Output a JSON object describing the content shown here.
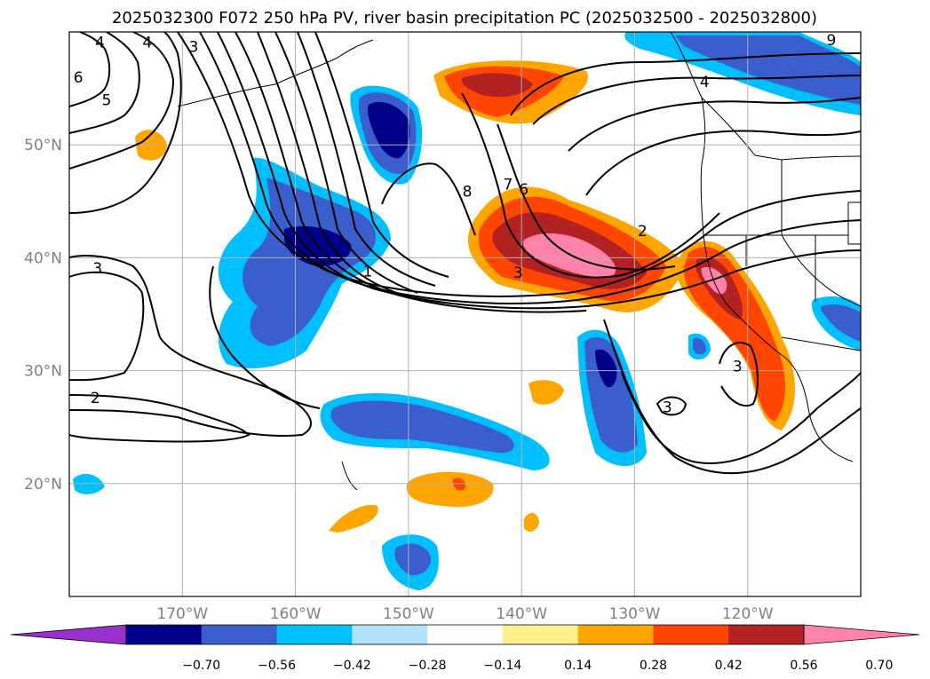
{
  "title": "2025032300 F072 250 hPa PV, river basin precipitation PC (2025032500 - 2025032800)",
  "map": {
    "lon_range": [
      -180,
      -110
    ],
    "lat_range": [
      10,
      60
    ],
    "lon_ticks": [
      {
        "value": -170,
        "label": "170°W"
      },
      {
        "value": -160,
        "label": "160°W"
      },
      {
        "value": -150,
        "label": "150°W"
      },
      {
        "value": -140,
        "label": "140°W"
      },
      {
        "value": -130,
        "label": "130°W"
      },
      {
        "value": -120,
        "label": "120°W"
      }
    ],
    "lat_ticks": [
      {
        "value": 50,
        "label": "50°N"
      },
      {
        "value": 40,
        "label": "40°N"
      },
      {
        "value": 30,
        "label": "30°N"
      },
      {
        "value": 20,
        "label": "20°N"
      }
    ],
    "grid": true
  },
  "colorbar": {
    "colors": [
      "#9932cc",
      "#00008b",
      "#3a5fcd",
      "#00bfff",
      "#b0e2ff",
      "#ffffff",
      "#fff08c",
      "#ffa500",
      "#ff4500",
      "#b22222",
      "#ff82ab"
    ],
    "labels": [
      "−0.70",
      "−0.56",
      "−0.42",
      "−0.28",
      "−0.14",
      "0.14",
      "0.28",
      "0.42",
      "0.56",
      "0.70"
    ]
  },
  "contour_labels": [
    {
      "text": "4",
      "lon": -177.3,
      "lat": 59.1
    },
    {
      "text": "3",
      "lon": -177.5,
      "lat": 39.1
    },
    {
      "text": "2",
      "lon": -177.7,
      "lat": 27.6
    },
    {
      "text": "1",
      "lon": -153.6,
      "lat": 38.8
    },
    {
      "text": "3",
      "lon": -140.3,
      "lat": 38.7
    },
    {
      "text": "8",
      "lon": -144.8,
      "lat": 45.9
    },
    {
      "text": "7",
      "lon": -141.2,
      "lat": 46.5
    },
    {
      "text": "6",
      "lon": -139.8,
      "lat": 46.1
    },
    {
      "text": "2",
      "lon": -129.3,
      "lat": 42.4
    },
    {
      "text": "4",
      "lon": -123.8,
      "lat": 55.6
    },
    {
      "text": "3",
      "lon": -120.9,
      "lat": 30.4
    },
    {
      "text": "3",
      "lon": -127.1,
      "lat": 26.8
    },
    {
      "text": "5",
      "lon": -176.7,
      "lat": 54.0
    },
    {
      "text": "4",
      "lon": -173.1,
      "lat": 59.1
    },
    {
      "text": "3",
      "lon": -169.0,
      "lat": 58.7
    },
    {
      "text": "6",
      "lon": -179.2,
      "lat": 56.0
    },
    {
      "text": "9",
      "lon": -112.6,
      "lat": 59.3
    }
  ]
}
